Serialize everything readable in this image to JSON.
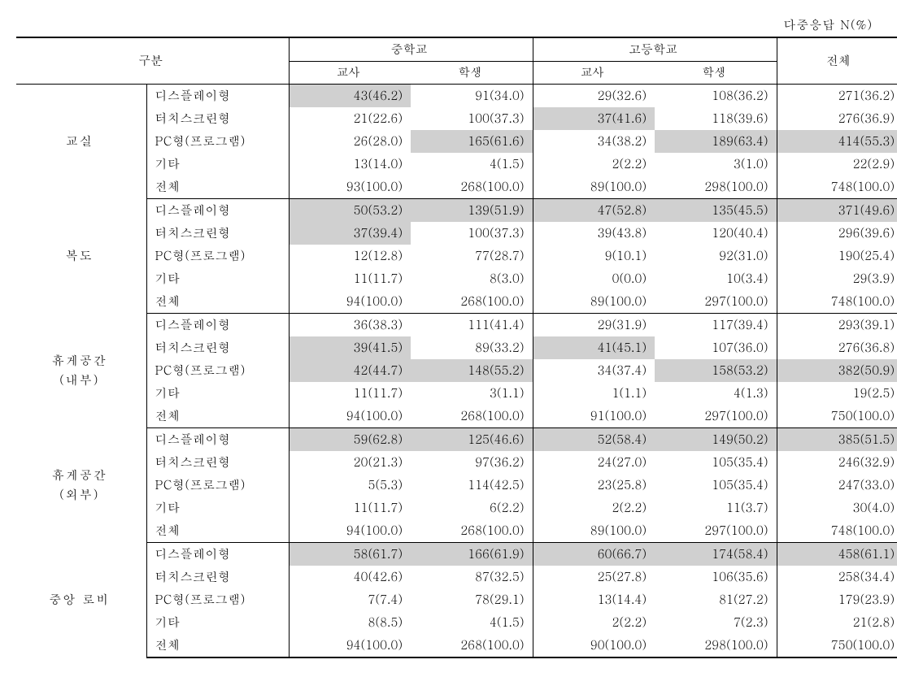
{
  "caption": "다중응답 N(%)",
  "header": {
    "corner": "구분",
    "group1": "중학교",
    "group2": "고등학교",
    "sub_teacher": "교사",
    "sub_student": "학생",
    "total": "전체"
  },
  "row_labels": {
    "r0": "디스플레이형",
    "r1": "터치스크린형",
    "r2": "PC형(프로그램)",
    "r3": "기타",
    "r4": "전체"
  },
  "groups": [
    {
      "name": "교실",
      "rows": [
        {
          "cells": [
            "43(46.2)",
            "91(34.0)",
            "29(32.6)",
            "108(36.2)",
            "271(36.2)"
          ],
          "hl": [
            0
          ]
        },
        {
          "cells": [
            "21(22.6)",
            "100(37.3)",
            "37(41.6)",
            "118(39.6)",
            "276(36.9)"
          ],
          "hl": [
            2
          ]
        },
        {
          "cells": [
            "26(28.0)",
            "165(61.6)",
            "34(38.2)",
            "189(63.4)",
            "414(55.3)"
          ],
          "hl": [
            1,
            3,
            4
          ]
        },
        {
          "cells": [
            "13(14.0)",
            "4(1.5)",
            "2(2.2)",
            "3(1.0)",
            "22(2.9)"
          ],
          "hl": []
        },
        {
          "cells": [
            "93(100.0)",
            "268(100.0)",
            "89(100.0)",
            "298(100.0)",
            "748(100.0)"
          ],
          "hl": []
        }
      ]
    },
    {
      "name": "복도",
      "rows": [
        {
          "cells": [
            "50(53.2)",
            "139(51.9)",
            "47(52.8)",
            "135(45.5)",
            "371(49.6)"
          ],
          "hl": [
            0,
            1,
            2,
            3,
            4
          ]
        },
        {
          "cells": [
            "37(39.4)",
            "100(37.3)",
            "39(43.8)",
            "120(40.4)",
            "296(39.6)"
          ],
          "hl": [
            0
          ]
        },
        {
          "cells": [
            "12(12.8)",
            "77(28.7)",
            "9(10.1)",
            "92(31.0)",
            "190(25.4)"
          ],
          "hl": []
        },
        {
          "cells": [
            "11(11.7)",
            "8(3.0)",
            "0(0.0)",
            "10(3.4)",
            "29(3.9)"
          ],
          "hl": []
        },
        {
          "cells": [
            "94(100.0)",
            "268(100.0)",
            "89(100.0)",
            "297(100.0)",
            "748(100.0)"
          ],
          "hl": []
        }
      ]
    },
    {
      "name": "휴게공간\n(내부)",
      "rows": [
        {
          "cells": [
            "36(38.3)",
            "111(41.4)",
            "29(31.9)",
            "117(39.4)",
            "293(39.1)"
          ],
          "hl": []
        },
        {
          "cells": [
            "39(41.5)",
            "89(33.2)",
            "41(45.1)",
            "107(36.0)",
            "276(36.8)"
          ],
          "hl": [
            0,
            2
          ]
        },
        {
          "cells": [
            "42(44.7)",
            "148(55.2)",
            "34(37.4)",
            "158(53.2)",
            "382(50.9)"
          ],
          "hl": [
            0,
            1,
            3,
            4
          ]
        },
        {
          "cells": [
            "11(11.7)",
            "3(1.1)",
            "1(1.1)",
            "4(1.3)",
            "19(2.5)"
          ],
          "hl": []
        },
        {
          "cells": [
            "94(100.0)",
            "268(100.0)",
            "91(100.0)",
            "297(100.0)",
            "750(100.0)"
          ],
          "hl": []
        }
      ]
    },
    {
      "name": "휴게공간\n(외부)",
      "rows": [
        {
          "cells": [
            "59(62.8)",
            "125(46.6)",
            "52(58.4)",
            "149(50.2)",
            "385(51.5)"
          ],
          "hl": [
            0,
            1,
            2,
            3,
            4
          ]
        },
        {
          "cells": [
            "20(21.3)",
            "97(36.2)",
            "24(27.0)",
            "105(35.4)",
            "246(32.9)"
          ],
          "hl": []
        },
        {
          "cells": [
            "5(5.3)",
            "114(42.5)",
            "23(25.8)",
            "105(35.4)",
            "247(33.0)"
          ],
          "hl": []
        },
        {
          "cells": [
            "11(11.7)",
            "6(2.2)",
            "2(2.2)",
            "11(3.7)",
            "30(4.0)"
          ],
          "hl": []
        },
        {
          "cells": [
            "94(100.0)",
            "268(100.0)",
            "89(100.0)",
            "297(100.0)",
            "748(100.0)"
          ],
          "hl": []
        }
      ]
    },
    {
      "name": "중앙 로비",
      "rows": [
        {
          "cells": [
            "58(61.7)",
            "166(61.9)",
            "60(66.7)",
            "174(58.4)",
            "458(61.1)"
          ],
          "hl": [
            0,
            1,
            2,
            3,
            4
          ]
        },
        {
          "cells": [
            "40(42.6)",
            "87(32.5)",
            "25(27.8)",
            "106(35.6)",
            "258(34.4)"
          ],
          "hl": []
        },
        {
          "cells": [
            "7(7.4)",
            "78(29.1)",
            "13(14.4)",
            "81(27.2)",
            "179(23.9)"
          ],
          "hl": []
        },
        {
          "cells": [
            "8(8.5)",
            "4(1.5)",
            "2(2.2)",
            "7(2.3)",
            "21(2.8)"
          ],
          "hl": []
        },
        {
          "cells": [
            "94(100.0)",
            "268(100.0)",
            "90(100.0)",
            "298(100.0)",
            "750(100.0)"
          ],
          "hl": []
        }
      ]
    }
  ],
  "style": {
    "highlight_bg": "#d0d0d0",
    "border_color": "#000000",
    "background": "#ffffff"
  }
}
